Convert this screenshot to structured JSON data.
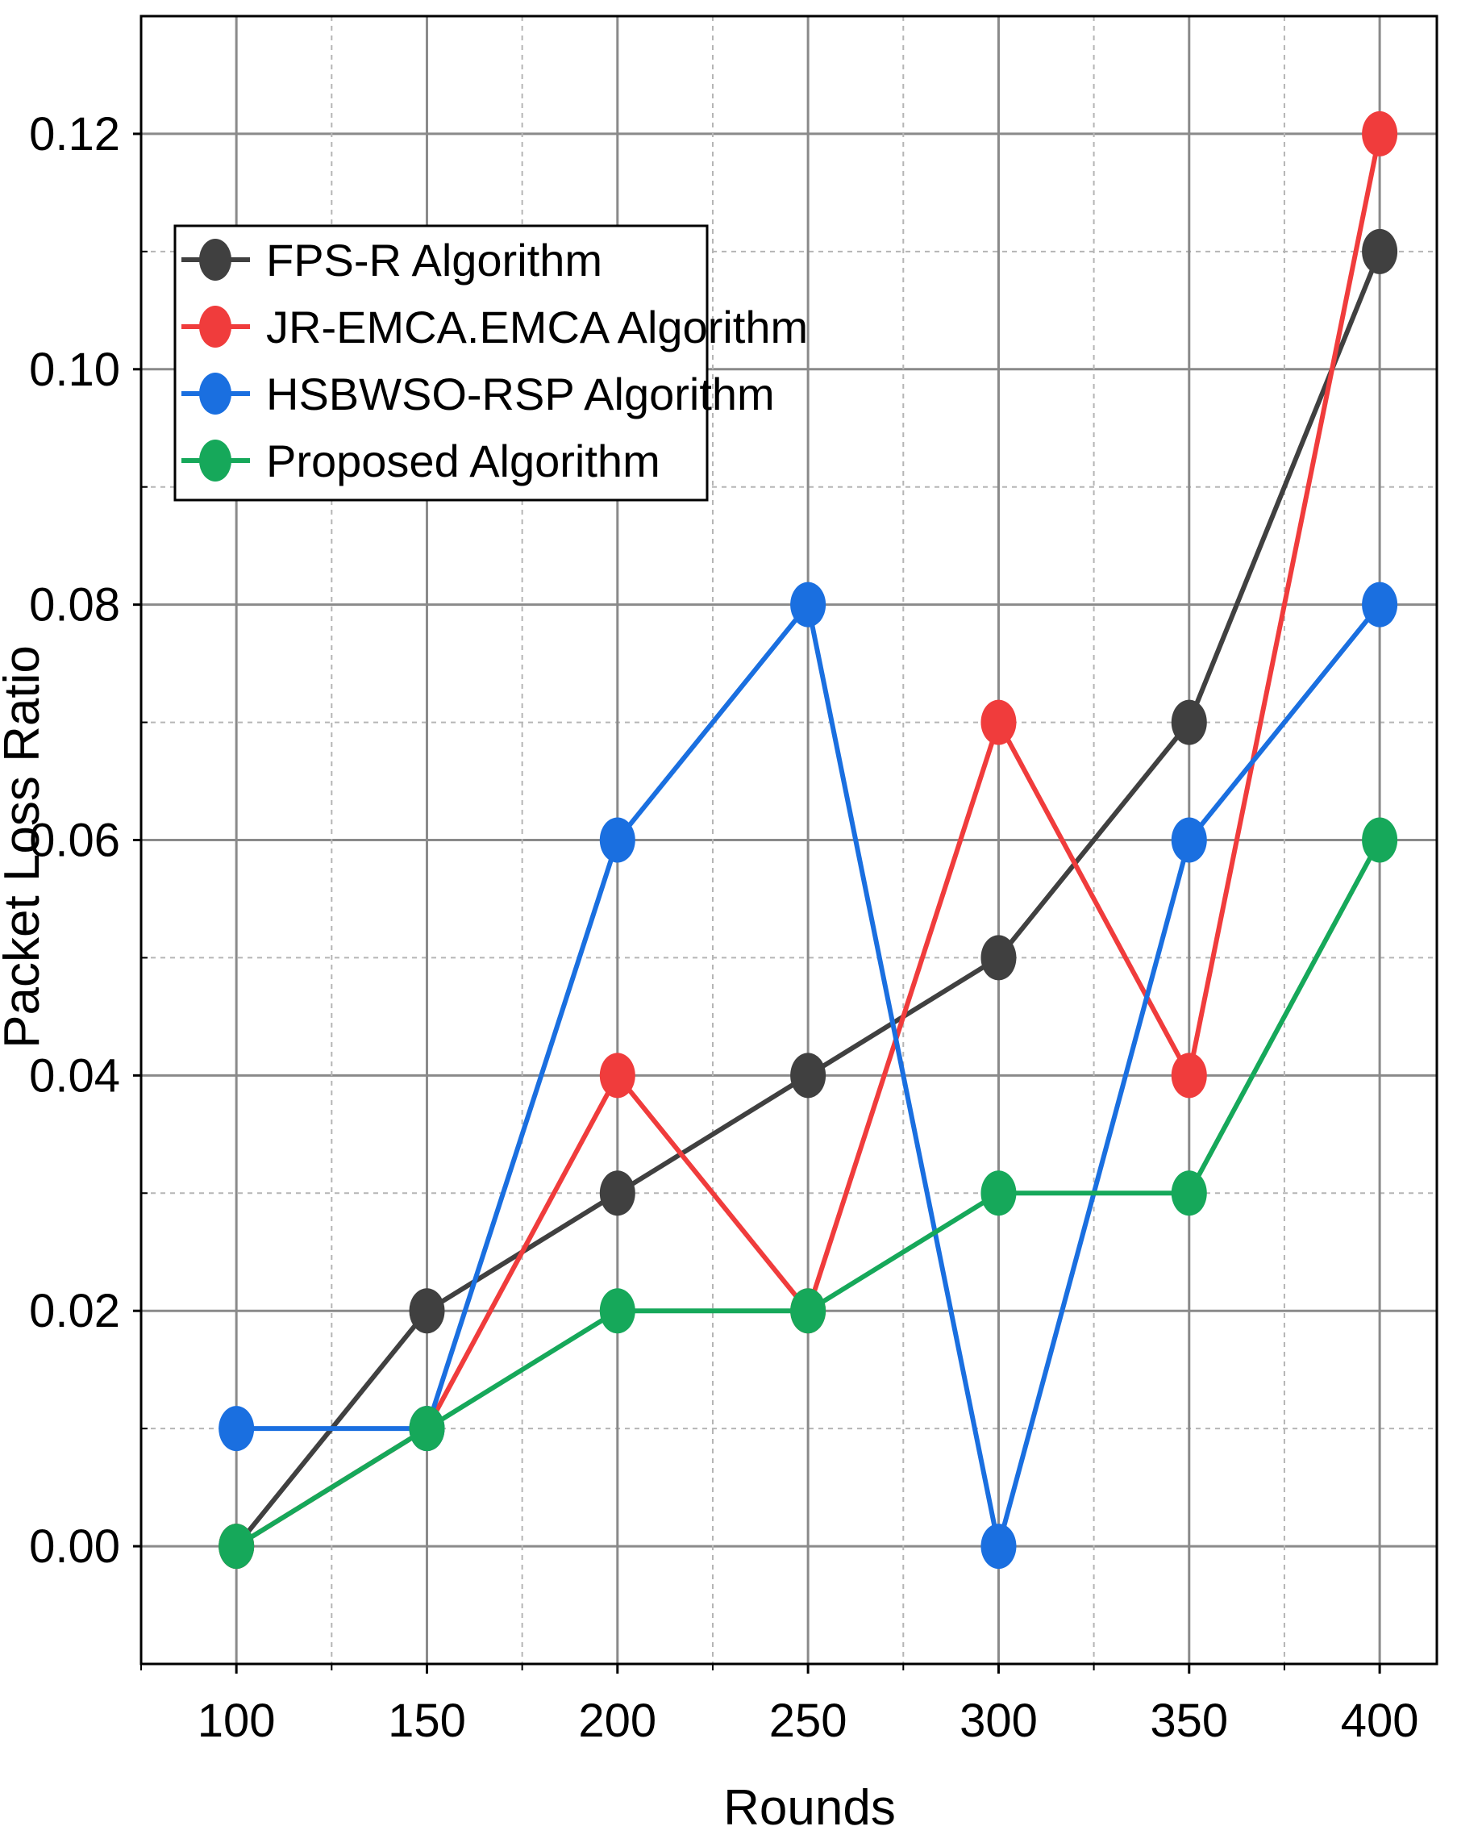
{
  "chart_data": {
    "type": "line",
    "title": "",
    "xlabel": "Rounds",
    "ylabel": "Packet Loss Ratio",
    "x": [
      100,
      150,
      200,
      250,
      300,
      350,
      400
    ],
    "x_tick_labels": [
      "100",
      "150",
      "200",
      "250",
      "300",
      "350",
      "400"
    ],
    "y_tick_labels": [
      "0.00",
      "0.02",
      "0.04",
      "0.06",
      "0.08",
      "0.10",
      "0.12"
    ],
    "y_ticks": [
      0.0,
      0.02,
      0.04,
      0.06,
      0.08,
      0.1,
      0.12
    ],
    "xlim": [
      75,
      415
    ],
    "ylim": [
      -0.01,
      0.13
    ],
    "grid": true,
    "legend_position": "top-left",
    "series": [
      {
        "name": "FPS-R Algorithm",
        "color": "#404040",
        "values": [
          0.0,
          0.02,
          0.03,
          0.04,
          0.05,
          0.07,
          0.11
        ]
      },
      {
        "name": "JR-EMCA.EMCA Algorithm",
        "color": "#f03c3c",
        "values": [
          0.0,
          0.01,
          0.04,
          0.02,
          0.07,
          0.04,
          0.12
        ]
      },
      {
        "name": "HSBWSO-RSP Algorithm",
        "color": "#1a6fe0",
        "values": [
          0.01,
          0.01,
          0.06,
          0.08,
          0.0,
          0.06,
          0.08
        ]
      },
      {
        "name": "Proposed Algorithm",
        "color": "#16a85a",
        "values": [
          0.0,
          0.01,
          0.02,
          0.02,
          0.03,
          0.03,
          0.06
        ]
      }
    ]
  }
}
